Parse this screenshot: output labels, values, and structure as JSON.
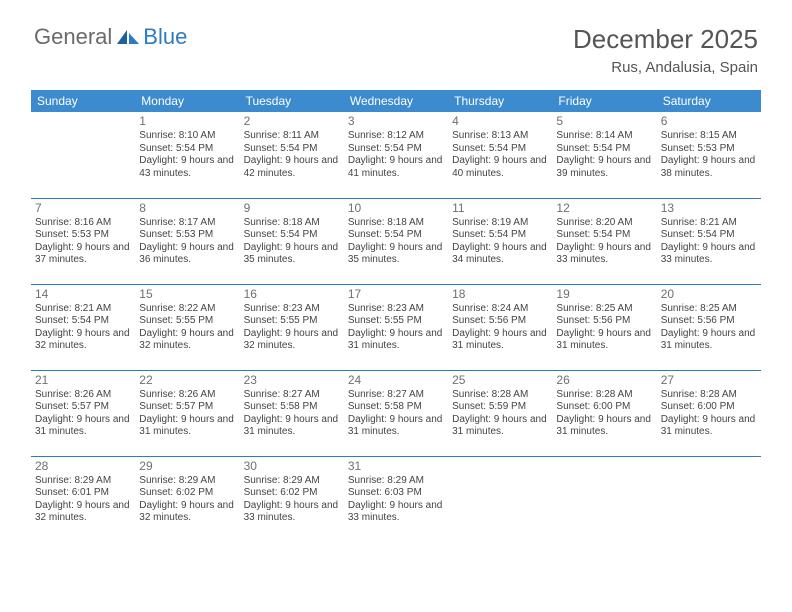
{
  "logo": {
    "general": "General",
    "blue": "Blue"
  },
  "title": "December 2025",
  "location": "Rus, Andalusia, Spain",
  "colors": {
    "header_bg": "#3d8bcf",
    "header_text": "#ffffff",
    "border": "#2d7bc4",
    "text": "#444444",
    "daynum": "#707070",
    "title_text": "#555555",
    "logo_gray": "#6b6b6b",
    "logo_blue": "#2d7bc4",
    "background": "#ffffff"
  },
  "days_of_week": [
    "Sunday",
    "Monday",
    "Tuesday",
    "Wednesday",
    "Thursday",
    "Friday",
    "Saturday"
  ],
  "weeks": [
    [
      null,
      {
        "n": "1",
        "sr": "8:10 AM",
        "ss": "5:54 PM",
        "dl": "9 hours and 43 minutes."
      },
      {
        "n": "2",
        "sr": "8:11 AM",
        "ss": "5:54 PM",
        "dl": "9 hours and 42 minutes."
      },
      {
        "n": "3",
        "sr": "8:12 AM",
        "ss": "5:54 PM",
        "dl": "9 hours and 41 minutes."
      },
      {
        "n": "4",
        "sr": "8:13 AM",
        "ss": "5:54 PM",
        "dl": "9 hours and 40 minutes."
      },
      {
        "n": "5",
        "sr": "8:14 AM",
        "ss": "5:54 PM",
        "dl": "9 hours and 39 minutes."
      },
      {
        "n": "6",
        "sr": "8:15 AM",
        "ss": "5:53 PM",
        "dl": "9 hours and 38 minutes."
      }
    ],
    [
      {
        "n": "7",
        "sr": "8:16 AM",
        "ss": "5:53 PM",
        "dl": "9 hours and 37 minutes."
      },
      {
        "n": "8",
        "sr": "8:17 AM",
        "ss": "5:53 PM",
        "dl": "9 hours and 36 minutes."
      },
      {
        "n": "9",
        "sr": "8:18 AM",
        "ss": "5:54 PM",
        "dl": "9 hours and 35 minutes."
      },
      {
        "n": "10",
        "sr": "8:18 AM",
        "ss": "5:54 PM",
        "dl": "9 hours and 35 minutes."
      },
      {
        "n": "11",
        "sr": "8:19 AM",
        "ss": "5:54 PM",
        "dl": "9 hours and 34 minutes."
      },
      {
        "n": "12",
        "sr": "8:20 AM",
        "ss": "5:54 PM",
        "dl": "9 hours and 33 minutes."
      },
      {
        "n": "13",
        "sr": "8:21 AM",
        "ss": "5:54 PM",
        "dl": "9 hours and 33 minutes."
      }
    ],
    [
      {
        "n": "14",
        "sr": "8:21 AM",
        "ss": "5:54 PM",
        "dl": "9 hours and 32 minutes."
      },
      {
        "n": "15",
        "sr": "8:22 AM",
        "ss": "5:55 PM",
        "dl": "9 hours and 32 minutes."
      },
      {
        "n": "16",
        "sr": "8:23 AM",
        "ss": "5:55 PM",
        "dl": "9 hours and 32 minutes."
      },
      {
        "n": "17",
        "sr": "8:23 AM",
        "ss": "5:55 PM",
        "dl": "9 hours and 31 minutes."
      },
      {
        "n": "18",
        "sr": "8:24 AM",
        "ss": "5:56 PM",
        "dl": "9 hours and 31 minutes."
      },
      {
        "n": "19",
        "sr": "8:25 AM",
        "ss": "5:56 PM",
        "dl": "9 hours and 31 minutes."
      },
      {
        "n": "20",
        "sr": "8:25 AM",
        "ss": "5:56 PM",
        "dl": "9 hours and 31 minutes."
      }
    ],
    [
      {
        "n": "21",
        "sr": "8:26 AM",
        "ss": "5:57 PM",
        "dl": "9 hours and 31 minutes."
      },
      {
        "n": "22",
        "sr": "8:26 AM",
        "ss": "5:57 PM",
        "dl": "9 hours and 31 minutes."
      },
      {
        "n": "23",
        "sr": "8:27 AM",
        "ss": "5:58 PM",
        "dl": "9 hours and 31 minutes."
      },
      {
        "n": "24",
        "sr": "8:27 AM",
        "ss": "5:58 PM",
        "dl": "9 hours and 31 minutes."
      },
      {
        "n": "25",
        "sr": "8:28 AM",
        "ss": "5:59 PM",
        "dl": "9 hours and 31 minutes."
      },
      {
        "n": "26",
        "sr": "8:28 AM",
        "ss": "6:00 PM",
        "dl": "9 hours and 31 minutes."
      },
      {
        "n": "27",
        "sr": "8:28 AM",
        "ss": "6:00 PM",
        "dl": "9 hours and 31 minutes."
      }
    ],
    [
      {
        "n": "28",
        "sr": "8:29 AM",
        "ss": "6:01 PM",
        "dl": "9 hours and 32 minutes."
      },
      {
        "n": "29",
        "sr": "8:29 AM",
        "ss": "6:02 PM",
        "dl": "9 hours and 32 minutes."
      },
      {
        "n": "30",
        "sr": "8:29 AM",
        "ss": "6:02 PM",
        "dl": "9 hours and 33 minutes."
      },
      {
        "n": "31",
        "sr": "8:29 AM",
        "ss": "6:03 PM",
        "dl": "9 hours and 33 minutes."
      },
      null,
      null,
      null
    ]
  ],
  "labels": {
    "sunrise": "Sunrise:",
    "sunset": "Sunset:",
    "daylight": "Daylight:"
  }
}
